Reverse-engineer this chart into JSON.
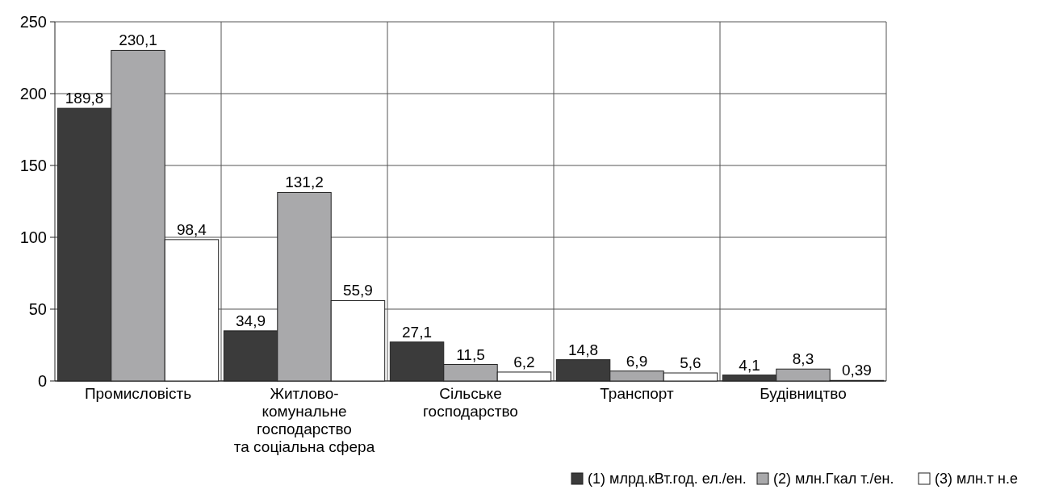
{
  "chart_data": {
    "type": "bar",
    "categories": [
      "Промисловість",
      "Житлово-\nкомунальне\nгосподарство\nта соціальна сфера",
      "Сільське\nгосподарство",
      "Транспорт",
      "Будівництво"
    ],
    "series": [
      {
        "name": "(1)  млрд.кВт.год. ел./ен.",
        "color": "#3b3b3b",
        "values": [
          189.8,
          34.9,
          27.1,
          14.8,
          4.1
        ],
        "value_labels": [
          "189,8",
          "34,9",
          "27,1",
          "14,8",
          "4,1"
        ]
      },
      {
        "name": "(2)  млн.Гкал т./ен.",
        "color": "#a9a9ab",
        "values": [
          230.1,
          131.2,
          11.5,
          6.9,
          8.3
        ],
        "value_labels": [
          "230,1",
          "131,2",
          "11,5",
          "6,9",
          "8,3"
        ]
      },
      {
        "name": "(3)  млн.т н.е",
        "color": "#ffffff",
        "values": [
          98.4,
          55.9,
          6.2,
          5.6,
          0.39
        ],
        "value_labels": [
          "98,4",
          "55,9",
          "6,2",
          "5,6",
          "0,39"
        ]
      }
    ],
    "ylim": [
      0,
      250
    ],
    "yticks": [
      0,
      50,
      100,
      150,
      200,
      250
    ],
    "grid": true,
    "legend": "bottom right"
  }
}
